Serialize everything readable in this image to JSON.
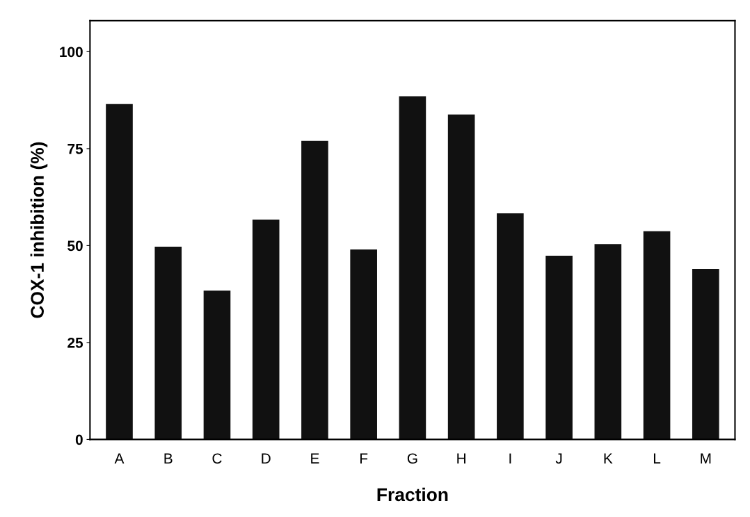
{
  "chart_data": {
    "type": "bar",
    "xlabel": "Fraction",
    "ylabel": "COX-1 inhibition (%)",
    "categories": [
      "A",
      "B",
      "C",
      "D",
      "E",
      "F",
      "G",
      "H",
      "I",
      "J",
      "K",
      "L",
      "M"
    ],
    "values": [
      86.5,
      49.7,
      38.4,
      56.7,
      77.0,
      49.0,
      88.5,
      83.8,
      58.3,
      47.4,
      50.4,
      53.7,
      44.0
    ],
    "color": "#111111",
    "ylim": [
      0,
      108
    ],
    "yticks": [
      0,
      25,
      50,
      75,
      100
    ],
    "grid": false
  }
}
